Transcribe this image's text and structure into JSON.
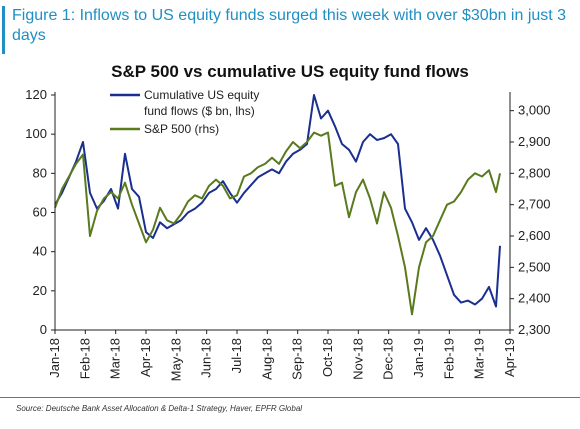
{
  "figure_title": "Figure 1: Inflows to US equity funds surged this week with over $30bn in just 3 days",
  "source": "Source: Deutsche Bank Asset Allocation & Delta-1 Strategy, Haver, EPFR Global",
  "chart_data": {
    "type": "line",
    "title": "S&P 500 vs cumulative US equity fund flows",
    "x_ticks": [
      "Jan-18",
      "Feb-18",
      "Mar-18",
      "Apr-18",
      "May-18",
      "Jun-18",
      "Jul-18",
      "Aug-18",
      "Sep-18",
      "Oct-18",
      "Nov-18",
      "Dec-18",
      "Jan-19",
      "Feb-19",
      "Mar-19",
      "Apr-19"
    ],
    "y_left": {
      "ticks": [
        "0",
        "20",
        "40",
        "60",
        "80",
        "100",
        "120"
      ],
      "lim": [
        0,
        120
      ]
    },
    "y_right": {
      "ticks": [
        "2,300",
        "2,400",
        "2,500",
        "2,600",
        "2,700",
        "2,800",
        "2,900",
        "3,000"
      ],
      "lim": [
        2300,
        3050
      ]
    },
    "grid": false,
    "legend": "top-left",
    "series": [
      {
        "name": "Cumulative US equity fund flows ($ bn, lhs)",
        "axis": "left",
        "color": "#1a2f8f",
        "points": [
          [
            "2018-01-01",
            64
          ],
          [
            "2018-01-08",
            70
          ],
          [
            "2018-01-15",
            78
          ],
          [
            "2018-01-22",
            86
          ],
          [
            "2018-01-29",
            96
          ],
          [
            "2018-02-05",
            70
          ],
          [
            "2018-02-12",
            62
          ],
          [
            "2018-02-19",
            66
          ],
          [
            "2018-02-26",
            72
          ],
          [
            "2018-03-05",
            62
          ],
          [
            "2018-03-12",
            90
          ],
          [
            "2018-03-19",
            72
          ],
          [
            "2018-03-26",
            68
          ],
          [
            "2018-04-02",
            50
          ],
          [
            "2018-04-09",
            47
          ],
          [
            "2018-04-16",
            55
          ],
          [
            "2018-04-23",
            52
          ],
          [
            "2018-04-30",
            54
          ],
          [
            "2018-05-07",
            56
          ],
          [
            "2018-05-14",
            60
          ],
          [
            "2018-05-21",
            62
          ],
          [
            "2018-05-28",
            65
          ],
          [
            "2018-06-04",
            70
          ],
          [
            "2018-06-11",
            72
          ],
          [
            "2018-06-18",
            76
          ],
          [
            "2018-06-25",
            70
          ],
          [
            "2018-07-02",
            65
          ],
          [
            "2018-07-09",
            70
          ],
          [
            "2018-07-16",
            74
          ],
          [
            "2018-07-23",
            78
          ],
          [
            "2018-07-30",
            80
          ],
          [
            "2018-08-06",
            82
          ],
          [
            "2018-08-13",
            80
          ],
          [
            "2018-08-20",
            86
          ],
          [
            "2018-08-27",
            90
          ],
          [
            "2018-09-03",
            92
          ],
          [
            "2018-09-10",
            95
          ],
          [
            "2018-09-17",
            120
          ],
          [
            "2018-09-24",
            108
          ],
          [
            "2018-10-01",
            112
          ],
          [
            "2018-10-08",
            104
          ],
          [
            "2018-10-15",
            95
          ],
          [
            "2018-10-22",
            92
          ],
          [
            "2018-10-29",
            86
          ],
          [
            "2018-11-05",
            96
          ],
          [
            "2018-11-12",
            100
          ],
          [
            "2018-11-19",
            97
          ],
          [
            "2018-11-26",
            98
          ],
          [
            "2018-12-03",
            100
          ],
          [
            "2018-12-10",
            95
          ],
          [
            "2018-12-17",
            62
          ],
          [
            "2018-12-24",
            55
          ],
          [
            "2018-12-31",
            46
          ],
          [
            "2019-01-07",
            52
          ],
          [
            "2019-01-14",
            46
          ],
          [
            "2019-01-21",
            38
          ],
          [
            "2019-01-28",
            28
          ],
          [
            "2019-02-04",
            18
          ],
          [
            "2019-02-11",
            14
          ],
          [
            "2019-02-18",
            15
          ],
          [
            "2019-02-25",
            13
          ],
          [
            "2019-03-04",
            16
          ],
          [
            "2019-03-11",
            22
          ],
          [
            "2019-03-18",
            12
          ],
          [
            "2019-03-22",
            43
          ]
        ]
      },
      {
        "name": "S&P 500 (rhs)",
        "axis": "right",
        "color": "#5a7a1e",
        "points": [
          [
            "2018-01-01",
            2690
          ],
          [
            "2018-01-08",
            2750
          ],
          [
            "2018-01-15",
            2790
          ],
          [
            "2018-01-22",
            2830
          ],
          [
            "2018-01-29",
            2860
          ],
          [
            "2018-02-05",
            2600
          ],
          [
            "2018-02-12",
            2680
          ],
          [
            "2018-02-19",
            2720
          ],
          [
            "2018-02-26",
            2740
          ],
          [
            "2018-03-05",
            2720
          ],
          [
            "2018-03-12",
            2770
          ],
          [
            "2018-03-19",
            2700
          ],
          [
            "2018-03-26",
            2640
          ],
          [
            "2018-04-02",
            2580
          ],
          [
            "2018-04-09",
            2620
          ],
          [
            "2018-04-16",
            2690
          ],
          [
            "2018-04-23",
            2650
          ],
          [
            "2018-04-30",
            2640
          ],
          [
            "2018-05-07",
            2670
          ],
          [
            "2018-05-14",
            2710
          ],
          [
            "2018-05-21",
            2730
          ],
          [
            "2018-05-28",
            2720
          ],
          [
            "2018-06-04",
            2760
          ],
          [
            "2018-06-11",
            2780
          ],
          [
            "2018-06-18",
            2760
          ],
          [
            "2018-06-25",
            2720
          ],
          [
            "2018-07-02",
            2730
          ],
          [
            "2018-07-09",
            2790
          ],
          [
            "2018-07-16",
            2800
          ],
          [
            "2018-07-23",
            2820
          ],
          [
            "2018-07-30",
            2830
          ],
          [
            "2018-08-06",
            2850
          ],
          [
            "2018-08-13",
            2830
          ],
          [
            "2018-08-20",
            2870
          ],
          [
            "2018-08-27",
            2900
          ],
          [
            "2018-09-03",
            2880
          ],
          [
            "2018-09-10",
            2900
          ],
          [
            "2018-09-17",
            2930
          ],
          [
            "2018-09-24",
            2920
          ],
          [
            "2018-10-01",
            2930
          ],
          [
            "2018-10-08",
            2760
          ],
          [
            "2018-10-15",
            2770
          ],
          [
            "2018-10-22",
            2660
          ],
          [
            "2018-10-29",
            2740
          ],
          [
            "2018-11-05",
            2780
          ],
          [
            "2018-11-12",
            2720
          ],
          [
            "2018-11-19",
            2640
          ],
          [
            "2018-11-26",
            2740
          ],
          [
            "2018-12-03",
            2690
          ],
          [
            "2018-12-10",
            2600
          ],
          [
            "2018-12-17",
            2500
          ],
          [
            "2018-12-24",
            2350
          ],
          [
            "2018-12-31",
            2500
          ],
          [
            "2019-01-07",
            2580
          ],
          [
            "2019-01-14",
            2600
          ],
          [
            "2019-01-21",
            2650
          ],
          [
            "2019-01-28",
            2700
          ],
          [
            "2019-02-04",
            2710
          ],
          [
            "2019-02-11",
            2740
          ],
          [
            "2019-02-18",
            2780
          ],
          [
            "2019-02-25",
            2800
          ],
          [
            "2019-03-04",
            2790
          ],
          [
            "2019-03-11",
            2810
          ],
          [
            "2019-03-18",
            2740
          ],
          [
            "2019-03-22",
            2800
          ]
        ]
      }
    ]
  }
}
